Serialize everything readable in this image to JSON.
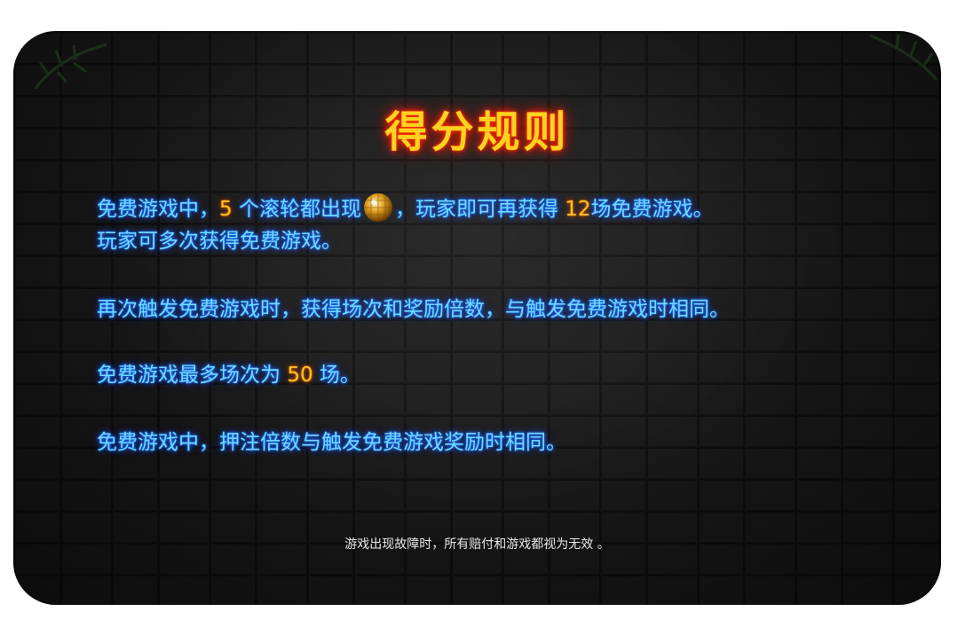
{
  "title": "得分规则",
  "rules": {
    "p1_line1_a": "免费游戏中，",
    "p1_num1": "5",
    "p1_line1_b": " 个滚轮都出现",
    "p1_line1_c": "，玩家即可再获得 ",
    "p1_num2": "12",
    "p1_line1_d": "场免费游戏。",
    "p1_line2": "玩家可多次获得免费游戏。",
    "p2": "再次触发免费游戏时，获得场次和奖励倍数，与触发免费游戏时相同。",
    "p3_a": "免费游戏最多场次为 ",
    "p3_num": "50",
    "p3_b": " 场。",
    "p4": "免费游戏中，押注倍数与触发免费游戏奖励时相同。"
  },
  "footer": "游戏出现故障时，所有赔付和游戏都视为无效 。",
  "icons": {
    "scatter": "disco-ball-icon"
  },
  "colors": {
    "title": "#ffd21f",
    "text": "#6fd8ff",
    "highlight": "#ffc21f"
  }
}
